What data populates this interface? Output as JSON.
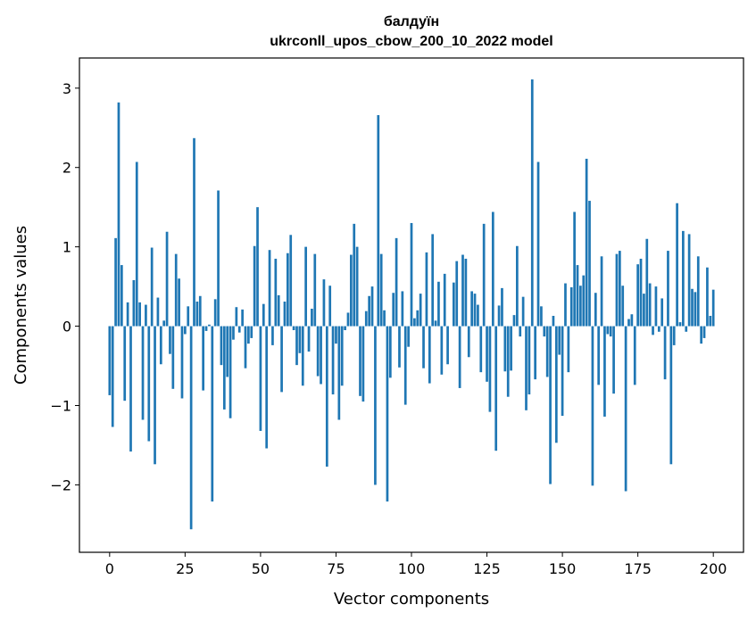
{
  "chart_data": {
    "type": "bar",
    "title_line1": "балдуїн",
    "title_line2": "ukrconll_upos_cbow_200_10_2022 model",
    "xlabel": "Vector components",
    "ylabel": "Components values",
    "xlim": [
      -10,
      210
    ],
    "ylim": [
      -2.85,
      3.38
    ],
    "xticks": [
      0,
      25,
      50,
      75,
      100,
      125,
      150,
      175,
      200
    ],
    "yticks": [
      -2,
      -1,
      0,
      1,
      2,
      3
    ],
    "ytick_labels": [
      "−2",
      "−1",
      "0",
      "1",
      "2",
      "3"
    ],
    "bar_color": "#1f77b4",
    "grid": false,
    "values": [
      -0.87,
      -1.27,
      1.11,
      2.82,
      0.77,
      -0.94,
      0.3,
      -1.58,
      0.58,
      2.07,
      0.3,
      -1.18,
      0.27,
      -1.45,
      0.99,
      -1.74,
      0.36,
      -0.48,
      0.07,
      1.19,
      -0.35,
      -0.79,
      0.91,
      0.6,
      -0.91,
      -0.1,
      0.25,
      -2.56,
      2.37,
      0.31,
      0.38,
      -0.81,
      -0.06,
      0.02,
      -2.21,
      0.34,
      1.71,
      -0.49,
      -1.05,
      -0.64,
      -1.16,
      -0.17,
      0.24,
      -0.08,
      0.21,
      -0.53,
      -0.22,
      -0.15,
      1.01,
      1.5,
      -1.32,
      0.28,
      -1.54,
      0.96,
      -0.24,
      0.85,
      0.39,
      -0.83,
      0.31,
      0.92,
      1.15,
      -0.05,
      -0.49,
      -0.34,
      -0.75,
      1.0,
      -0.32,
      0.22,
      0.91,
      -0.63,
      -0.73,
      0.59,
      -1.77,
      0.51,
      -0.86,
      -0.22,
      -1.18,
      -0.75,
      -0.05,
      0.17,
      0.9,
      1.29,
      1.0,
      -0.88,
      -0.95,
      0.19,
      0.38,
      0.5,
      -2.0,
      2.66,
      0.91,
      0.2,
      -2.21,
      -0.65,
      0.42,
      1.11,
      -0.52,
      0.44,
      -0.99,
      -0.26,
      1.3,
      0.1,
      0.2,
      0.41,
      -0.53,
      0.93,
      -0.72,
      1.16,
      0.07,
      0.56,
      -0.61,
      0.66,
      -0.48,
      0.0,
      0.55,
      0.82,
      -0.78,
      0.9,
      0.85,
      -0.39,
      0.44,
      0.41,
      0.27,
      -0.58,
      1.29,
      -0.7,
      -1.08,
      1.44,
      -1.57,
      0.26,
      0.48,
      -0.57,
      -0.89,
      -0.56,
      0.14,
      1.01,
      -0.13,
      0.37,
      -1.06,
      -0.86,
      3.11,
      -0.67,
      2.07,
      0.25,
      -0.13,
      -0.64,
      -1.99,
      0.13,
      -1.47,
      -0.36,
      -1.13,
      0.54,
      -0.58,
      0.49,
      1.44,
      0.77,
      0.51,
      0.64,
      2.11,
      1.58,
      -2.01,
      0.42,
      -0.74,
      0.88,
      -1.14,
      -0.1,
      -0.13,
      -0.85,
      0.91,
      0.95,
      0.51,
      -2.08,
      0.09,
      0.15,
      -0.74,
      0.78,
      0.85,
      0.41,
      1.1,
      0.54,
      -0.11,
      0.5,
      -0.07,
      0.35,
      -0.67,
      0.95,
      -1.74,
      -0.24,
      1.55,
      0.05,
      1.2,
      -0.07,
      1.16,
      0.47,
      0.43,
      0.88,
      -0.22,
      -0.15,
      0.74,
      0.13,
      0.46
    ]
  }
}
